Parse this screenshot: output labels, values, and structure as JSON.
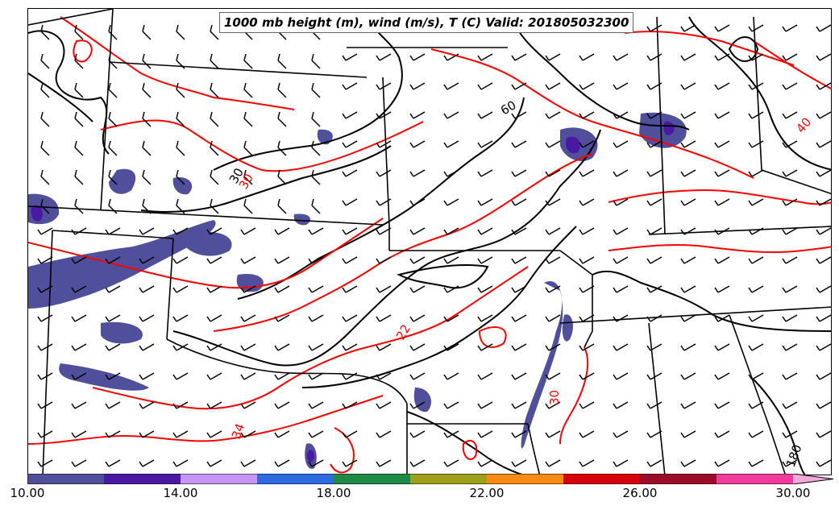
{
  "map": {
    "title": "1000 mb height (m), wind (m/s), T (C) Valid: 201805032300",
    "height_contour_labels": [
      "30",
      "60",
      "180"
    ],
    "temperature_contour_labels": [
      "30",
      "22",
      "30",
      "34",
      "40"
    ],
    "colors": {
      "height_contours": "#000000",
      "temperature_contours": "#ff0000",
      "state_borders": "#000000",
      "wind_fill": "#4b4f9e"
    }
  },
  "colorbar": {
    "tick_labels": [
      "10.00",
      "14.00",
      "18.00",
      "22.00",
      "26.00",
      "30.00"
    ],
    "bins": [
      {
        "min": 10,
        "max": 12,
        "color": "#4f4f9b"
      },
      {
        "min": 12,
        "max": 14,
        "color": "#4b18a3"
      },
      {
        "min": 14,
        "max": 16,
        "color": "#c596f2"
      },
      {
        "min": 16,
        "max": 18,
        "color": "#2d6be0"
      },
      {
        "min": 18,
        "max": 20,
        "color": "#1f8a46"
      },
      {
        "min": 20,
        "max": 22,
        "color": "#9ea01c"
      },
      {
        "min": 22,
        "max": 24,
        "color": "#f98b12"
      },
      {
        "min": 24,
        "max": 26,
        "color": "#d8000d"
      },
      {
        "min": 26,
        "max": 28,
        "color": "#9c0b2a"
      },
      {
        "min": 28,
        "max": 30,
        "color": "#f03a9c"
      },
      {
        "min": 30,
        "max": null,
        "color": "#f6a8d8"
      }
    ]
  }
}
